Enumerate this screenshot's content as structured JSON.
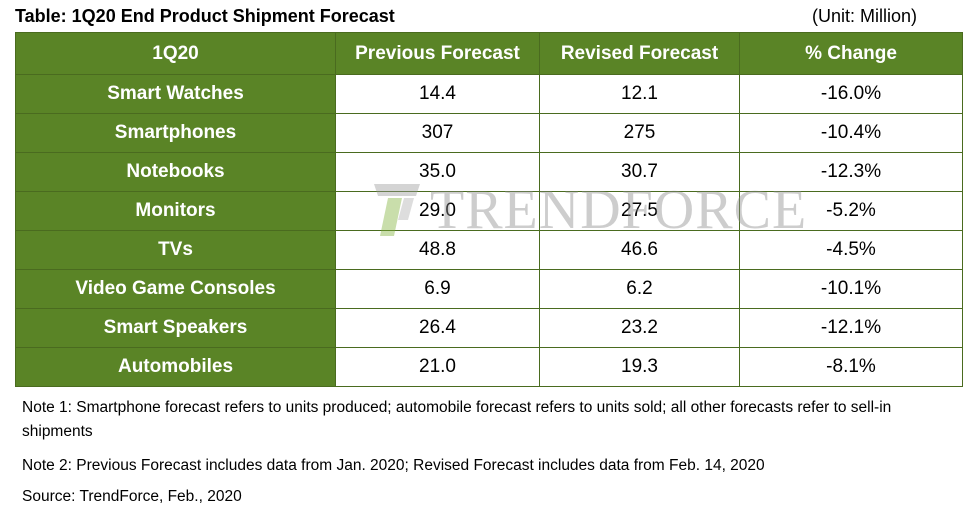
{
  "title": "Table: 1Q20 End Product Shipment Forecast",
  "unit_note": "(Unit: Million)",
  "watermark": "TRENDFORCE",
  "colors": {
    "header_bg": "#5a8426",
    "header_text": "#ffffff",
    "border": "#4a6b1f"
  },
  "chart_data": {
    "type": "table",
    "title": "Table: 1Q20 End Product Shipment Forecast",
    "columns": [
      "1Q20",
      "Previous Forecast",
      "Revised Forecast",
      "% Change"
    ],
    "rows": [
      [
        "Smart Watches",
        "14.4",
        "12.1",
        "-16.0%"
      ],
      [
        "Smartphones",
        "307",
        "275",
        "-10.4%"
      ],
      [
        "Notebooks",
        "35.0",
        "30.7",
        "-12.3%"
      ],
      [
        "Monitors",
        "29.0",
        "27.5",
        "-5.2%"
      ],
      [
        "TVs",
        "48.8",
        "46.6",
        "-4.5%"
      ],
      [
        "Video Game Consoles",
        "6.9",
        "6.2",
        "-10.1%"
      ],
      [
        "Smart Speakers",
        "26.4",
        "23.2",
        "-12.1%"
      ],
      [
        "Automobiles",
        "21.0",
        "19.3",
        "-8.1%"
      ]
    ]
  },
  "notes": {
    "note1": "Note 1: Smartphone forecast refers to units produced; automobile forecast refers to units sold; all other forecasts refer to sell-in shipments",
    "note2": "Note 2: Previous Forecast includes data from Jan. 2020; Revised Forecast includes data from Feb. 14, 2020",
    "source": "Source: TrendForce, Feb., 2020"
  }
}
